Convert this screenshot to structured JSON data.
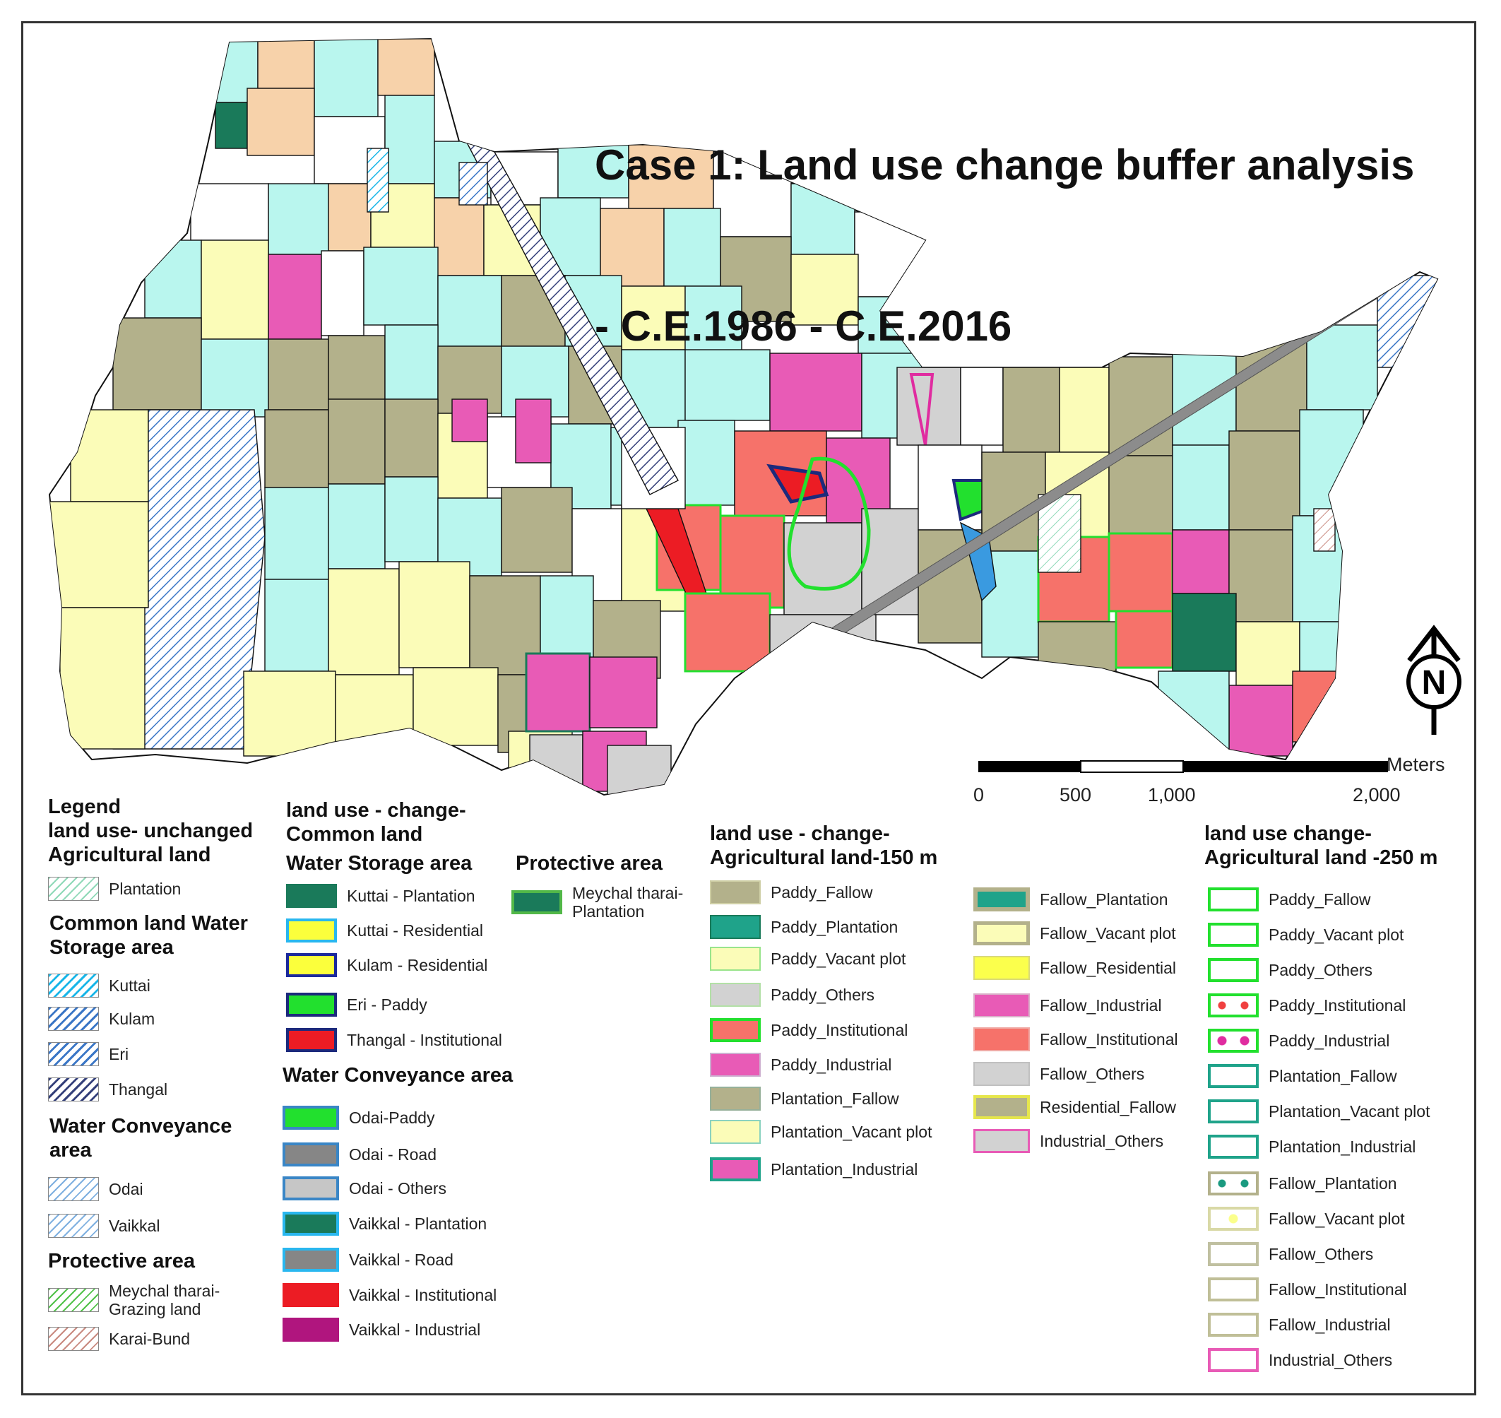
{
  "title": {
    "line1": "Case 1: Land use change buffer analysis",
    "line2": "- C.E.1986 - C.E.2016"
  },
  "colors": {
    "khaki": "#b3b18b",
    "cyan_light": "#b9f6ee",
    "peach": "#f7d2aa",
    "yellow_light": "#fbfcb8",
    "pink": "#e85bb6",
    "salmon": "#f6726a",
    "grey": "#d2d2d2",
    "teal_dark": "#1a7a5a",
    "teal": "#1fa38a",
    "green_bright": "#22e02e",
    "hatch_blue": "#3a76c6",
    "red": "#ec1c24"
  },
  "north_arrow": {
    "label": "N"
  },
  "scale_bar": {
    "unit": "Meters",
    "ticks": [
      "0",
      "500",
      "1,000",
      "2,000"
    ]
  },
  "legend": {
    "col1": {
      "title": "Legend",
      "g1": {
        "heading": "land use- unchanged Agricultural land",
        "items": [
          "Plantation"
        ]
      },
      "g2": {
        "heading": "Common land Water Storage area",
        "items": [
          "Kuttai",
          "Kulam",
          "Eri",
          "Thangal"
        ]
      },
      "g3": {
        "heading": "Water Conveyance area",
        "items": [
          "Odai",
          "Vaikkal"
        ]
      },
      "g4": {
        "heading": "Protective area",
        "items": [
          "Meychal tharai- Grazing land",
          "Karai-Bund"
        ]
      }
    },
    "col2": {
      "heading": "land use - change- Common land",
      "g1": {
        "heading": "Water Storage area",
        "items": [
          "Kuttai - Plantation",
          "Kuttai - Residential",
          "Kulam - Residential",
          "Eri - Paddy",
          "Thangal - Institutional"
        ]
      },
      "g2": {
        "heading": "Water Conveyance area",
        "items": [
          "Odai-Paddy",
          "Odai - Road",
          "Odai - Others",
          "Vaikkal - Plantation",
          "Vaikkal - Road",
          "Vaikkal - Institutional",
          "Vaikkal - Industrial"
        ]
      },
      "g3": {
        "heading": "Protective area",
        "items": [
          "Meychal tharai- Plantation"
        ]
      }
    },
    "col3": {
      "heading": "land use - change- Agricultural land-150 m",
      "items": [
        "Paddy_Fallow",
        "Paddy_Plantation",
        "Paddy_Vacant plot",
        "Paddy_Others",
        "Paddy_Institutional",
        "Paddy_Industrial",
        "Plantation_Fallow",
        "Plantation_Vacant plot",
        "Plantation_Industrial"
      ]
    },
    "col4": {
      "items": [
        "Fallow_Plantation",
        "Fallow_Vacant plot",
        "Fallow_Residential",
        "Fallow_Industrial",
        "Fallow_Institutional",
        "Fallow_Others",
        "Residential_Fallow",
        "Industrial_Others"
      ]
    },
    "col5": {
      "heading": "land use change- Agricultural land -250 m",
      "items": [
        "Paddy_Fallow",
        "Paddy_Vacant plot",
        "Paddy_Others",
        "Paddy_Institutional",
        "Paddy_Industrial",
        "Plantation_Fallow",
        "Plantation_Vacant plot",
        "Plantation_Industrial",
        "Fallow_Plantation",
        "Fallow_Vacant plot",
        "Fallow_Others",
        "Fallow_Institutional",
        "Fallow_Industrial",
        "Industrial_Others"
      ]
    }
  }
}
